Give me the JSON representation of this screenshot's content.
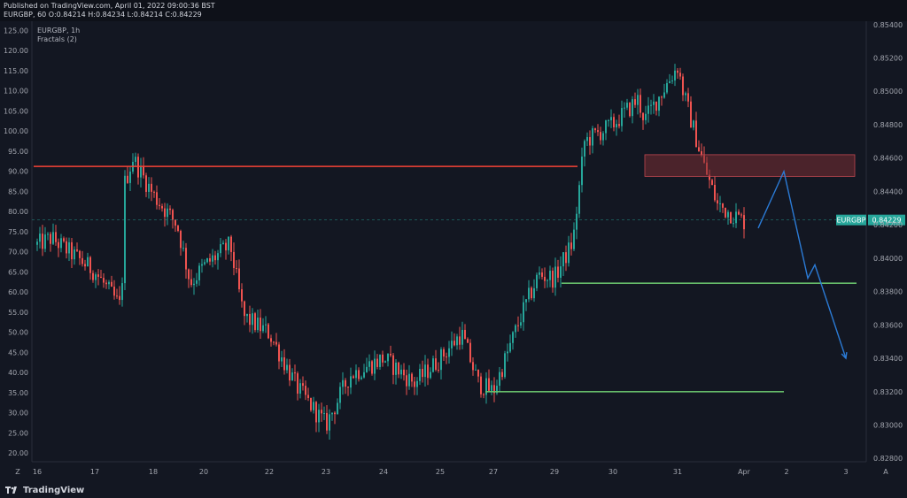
{
  "header": {
    "published": "Published on TradingView.com, April 01, 2022 09:00:36 BST",
    "ohlc": "EURGBP, 60 O:0.84214 H:0.84234 L:0.84214 C:0.84229"
  },
  "brand": {
    "name": "TradingView",
    "icon": "tradingview-logo-icon"
  },
  "colors": {
    "background": "#131722",
    "up": "#26a69a",
    "down": "#ef5350",
    "resistance": "#f44336",
    "support": "#66bb6a",
    "projection": "#2b7bd6",
    "zone": "#7a2e33",
    "price_label": "#26a69a"
  },
  "chart_data": {
    "type": "candlestick",
    "symbol_label": "EURGBP, 1h",
    "indicator_label": "Fractals (2)",
    "x_tick_labels": [
      "16",
      "17",
      "18",
      "20",
      "22",
      "23",
      "24",
      "25",
      "27",
      "29",
      "30",
      "31",
      "Apr",
      "2",
      "3"
    ],
    "left_axis": {
      "ticks": [
        "125.00",
        "120.00",
        "115.00",
        "110.00",
        "105.00",
        "100.00",
        "95.00",
        "90.00",
        "85.00",
        "80.00",
        "75.00",
        "70.00",
        "65.00",
        "60.00",
        "55.00",
        "50.00",
        "45.00",
        "40.00",
        "35.00",
        "30.00",
        "25.00",
        "20.00"
      ],
      "range": [
        17.8,
        127.3
      ]
    },
    "right_axis": {
      "ticks": [
        "0.85400",
        "0.85200",
        "0.85000",
        "0.84800",
        "0.84600",
        "0.84400",
        "0.84200",
        "0.84000",
        "0.83800",
        "0.83600",
        "0.83400",
        "0.83200",
        "0.83000",
        "0.82800"
      ],
      "range": [
        0.8278,
        0.8542
      ]
    },
    "current_price": {
      "symbol": "EURGBP",
      "value": "0.84229"
    },
    "price_path": [
      [
        "16",
        0.8408
      ],
      [
        "16.5",
        0.8412
      ],
      [
        "17",
        0.8392
      ],
      [
        "17.4",
        0.837
      ],
      [
        "17.5",
        0.8445
      ],
      [
        "17.6",
        0.846
      ],
      [
        "18",
        0.8438
      ],
      [
        "19",
        0.842
      ],
      [
        "19.5",
        0.8385
      ],
      [
        "20",
        0.8395
      ],
      [
        "20.5",
        0.8408
      ],
      [
        "21",
        0.8365
      ],
      [
        "22",
        0.8355
      ],
      [
        "22.5",
        0.8322
      ],
      [
        "23",
        0.83
      ],
      [
        "23.5",
        0.833
      ],
      [
        "24",
        0.834
      ],
      [
        "24.5",
        0.8325
      ],
      [
        "25",
        0.834
      ],
      [
        "25.5",
        0.8355
      ],
      [
        "26",
        0.8325
      ],
      [
        "27",
        0.832
      ],
      [
        "27.5",
        0.8365
      ],
      [
        "28",
        0.839
      ],
      [
        "29",
        0.8388
      ],
      [
        "29.3",
        0.841
      ],
      [
        "29.5",
        0.847
      ],
      [
        "30",
        0.848
      ],
      [
        "30.3",
        0.8495
      ],
      [
        "30.5",
        0.8483
      ],
      [
        "31",
        0.8515
      ],
      [
        "31.2",
        0.8498
      ],
      [
        "31.5",
        0.8455
      ],
      [
        "31.7",
        0.8432
      ],
      [
        "Apr",
        0.8422
      ]
    ],
    "annotations": [
      {
        "type": "horizontal-line",
        "name": "resistance",
        "value": 0.8455,
        "from": "15.6",
        "to": "29.4"
      },
      {
        "type": "horizontal-line",
        "name": "support-upper",
        "value": 0.8385,
        "from": "29.1",
        "to": "3.1"
      },
      {
        "type": "horizontal-line",
        "name": "support-lower",
        "value": 0.832,
        "from": "26.8",
        "to": "1.9"
      },
      {
        "type": "zone",
        "name": "supply-zone",
        "low": 0.8449,
        "high": 0.8462,
        "from": "30.5",
        "to": "3.2"
      },
      {
        "type": "projection-path",
        "name": "projected-move",
        "points": [
          [
            "0.5",
            0.8418
          ],
          [
            "1.9",
            0.8452
          ],
          [
            "2.4",
            0.8388
          ],
          [
            "2.6",
            0.8396
          ],
          [
            "3.0",
            0.834
          ]
        ]
      }
    ],
    "grid": false,
    "legend": "top-left"
  }
}
